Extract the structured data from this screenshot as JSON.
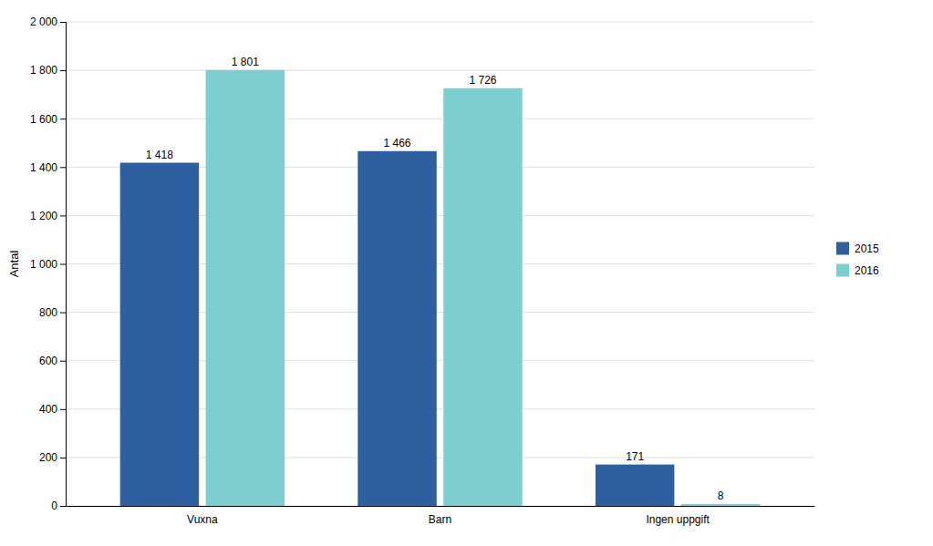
{
  "chart_data": {
    "type": "bar",
    "categories": [
      "Vuxna",
      "Barn",
      "Ingen uppgift"
    ],
    "series": [
      {
        "name": "2015",
        "color": "#2e5f9e",
        "values": [
          1418,
          1466,
          171
        ],
        "value_labels": [
          "1 418",
          "1 466",
          "171"
        ]
      },
      {
        "name": "2016",
        "color": "#7dcfcf",
        "values": [
          1801,
          1726,
          8
        ],
        "value_labels": [
          "1 801",
          "1 726",
          "8"
        ]
      }
    ],
    "ylabel": "Antal",
    "ylim": [
      0,
      2000
    ],
    "yticks": [
      0,
      200,
      400,
      600,
      800,
      {
        "value": 1000,
        "label": "1 000"
      },
      {
        "value": 1200,
        "label": "1 200"
      },
      {
        "value": 1400,
        "label": "1 400"
      },
      {
        "value": 1600,
        "label": "1 600"
      },
      {
        "value": 1800,
        "label": "1 800"
      },
      {
        "value": 2000,
        "label": "2 000"
      }
    ],
    "grid": true,
    "legend": "right",
    "data_labels": true
  }
}
